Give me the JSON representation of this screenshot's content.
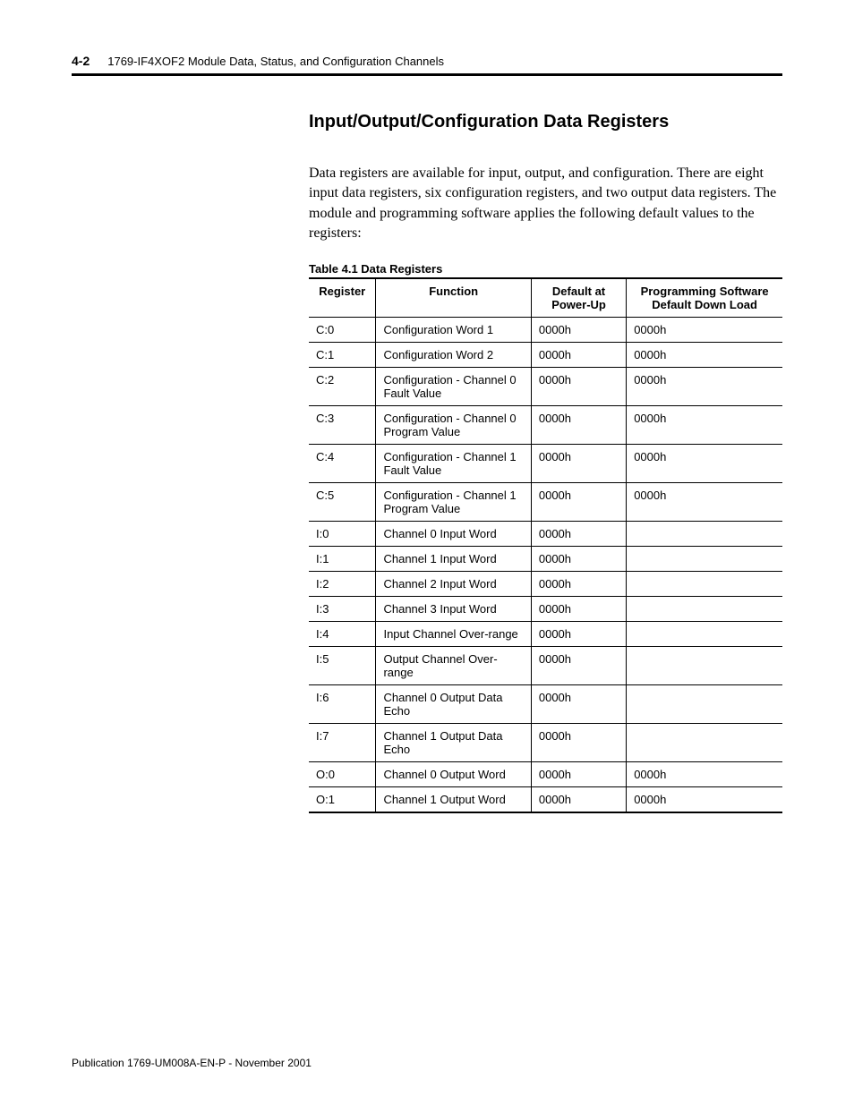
{
  "header": {
    "page_number": "4-2",
    "chapter_title": "1769-IF4XOF2 Module Data, Status, and Configuration Channels"
  },
  "section": {
    "title": "Input/Output/Configuration Data Registers",
    "body": "Data registers are available for input, output, and configuration. There are eight input data registers, six configuration registers, and two output data registers. The module and programming software applies the following default values to the registers:"
  },
  "table": {
    "caption": "Table 4.1  Data Registers",
    "columns": [
      "Register",
      "Function",
      "Default at Power-Up",
      "Programming Software Default Down Load"
    ],
    "rows": [
      [
        "C:0",
        "Configuration Word 1",
        "0000h",
        "0000h"
      ],
      [
        "C:1",
        "Configuration Word 2",
        "0000h",
        "0000h"
      ],
      [
        "C:2",
        "Configuration - Channel 0 Fault Value",
        "0000h",
        "0000h"
      ],
      [
        "C:3",
        "Configuration - Channel 0 Program Value",
        "0000h",
        "0000h"
      ],
      [
        "C:4",
        "Configuration - Channel 1 Fault Value",
        "0000h",
        "0000h"
      ],
      [
        "C:5",
        "Configuration - Channel 1 Program Value",
        "0000h",
        "0000h"
      ],
      [
        "I:0",
        "Channel 0 Input Word",
        "0000h",
        ""
      ],
      [
        "I:1",
        "Channel 1 Input Word",
        "0000h",
        ""
      ],
      [
        "I:2",
        "Channel 2 Input Word",
        "0000h",
        ""
      ],
      [
        "I:3",
        "Channel 3 Input Word",
        "0000h",
        ""
      ],
      [
        "I:4",
        "Input Channel Over-range",
        "0000h",
        ""
      ],
      [
        "I:5",
        "Output Channel Over-range",
        "0000h",
        ""
      ],
      [
        "I:6",
        "Channel 0 Output Data Echo",
        "0000h",
        ""
      ],
      [
        "I:7",
        "Channel 1 Output Data Echo",
        "0000h",
        ""
      ],
      [
        "O:0",
        "Channel 0 Output Word",
        "0000h",
        "0000h"
      ],
      [
        "O:1",
        "Channel 1 Output Word",
        "0000h",
        "0000h"
      ]
    ]
  },
  "footer": {
    "publication": "Publication 1769-UM008A-EN-P - November 2001"
  }
}
